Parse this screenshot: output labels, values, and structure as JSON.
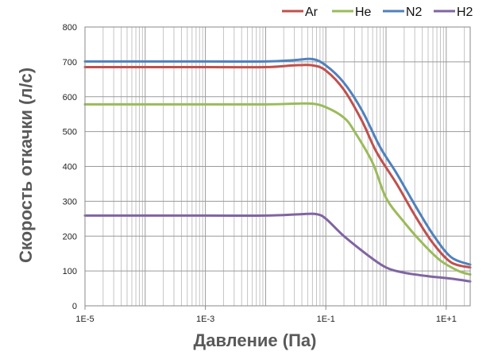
{
  "chart_data": {
    "type": "line",
    "xscale": "log",
    "xlim": [
      1e-05,
      25
    ],
    "ylim": [
      0,
      800
    ],
    "xlabel": "Давление (Па)",
    "ylabel": "Скорость откачки (л/с)",
    "xtick_values": [
      1e-05,
      0.001,
      0.1,
      10
    ],
    "xtick_labels": [
      "1E-5",
      "1E-3",
      "1E-1",
      "1E+1"
    ],
    "ytick_values": [
      0,
      100,
      200,
      300,
      400,
      500,
      600,
      700,
      800
    ],
    "ytick_labels": [
      "0",
      "100",
      "200",
      "300",
      "400",
      "500",
      "600",
      "700",
      "800"
    ],
    "grid": true,
    "legend_position": "top-right",
    "series": [
      {
        "name": "Ar",
        "color": "#c0504d",
        "points": [
          [
            1e-05,
            685
          ],
          [
            0.001,
            685
          ],
          [
            0.01,
            685
          ],
          [
            0.03,
            690
          ],
          [
            0.06,
            690
          ],
          [
            0.1,
            675
          ],
          [
            0.2,
            620
          ],
          [
            0.4,
            530
          ],
          [
            0.7,
            440
          ],
          [
            1.5,
            350
          ],
          [
            3,
            260
          ],
          [
            6,
            180
          ],
          [
            12,
            125
          ],
          [
            25,
            110
          ]
        ]
      },
      {
        "name": "He",
        "color": "#9bbb59",
        "points": [
          [
            1e-05,
            578
          ],
          [
            0.001,
            578
          ],
          [
            0.01,
            578
          ],
          [
            0.03,
            580
          ],
          [
            0.06,
            580
          ],
          [
            0.1,
            570
          ],
          [
            0.2,
            540
          ],
          [
            0.3,
            500
          ],
          [
            0.6,
            410
          ],
          [
            1,
            310
          ],
          [
            2,
            240
          ],
          [
            4,
            180
          ],
          [
            8,
            130
          ],
          [
            16,
            100
          ],
          [
            25,
            90
          ]
        ]
      },
      {
        "name": "N2",
        "color": "#4f81bd",
        "points": [
          [
            1e-05,
            701
          ],
          [
            0.001,
            701
          ],
          [
            0.01,
            701
          ],
          [
            0.03,
            705
          ],
          [
            0.06,
            708
          ],
          [
            0.1,
            690
          ],
          [
            0.2,
            640
          ],
          [
            0.4,
            560
          ],
          [
            0.8,
            455
          ],
          [
            1.5,
            380
          ],
          [
            3,
            290
          ],
          [
            6,
            205
          ],
          [
            12,
            140
          ],
          [
            25,
            118
          ]
        ]
      },
      {
        "name": "H2",
        "color": "#8064a2",
        "points": [
          [
            1e-05,
            259
          ],
          [
            0.001,
            259
          ],
          [
            0.01,
            259
          ],
          [
            0.04,
            263
          ],
          [
            0.07,
            263
          ],
          [
            0.1,
            250
          ],
          [
            0.2,
            200
          ],
          [
            0.5,
            145
          ],
          [
            1,
            110
          ],
          [
            2,
            95
          ],
          [
            5,
            85
          ],
          [
            12,
            78
          ],
          [
            25,
            70
          ]
        ]
      }
    ]
  }
}
